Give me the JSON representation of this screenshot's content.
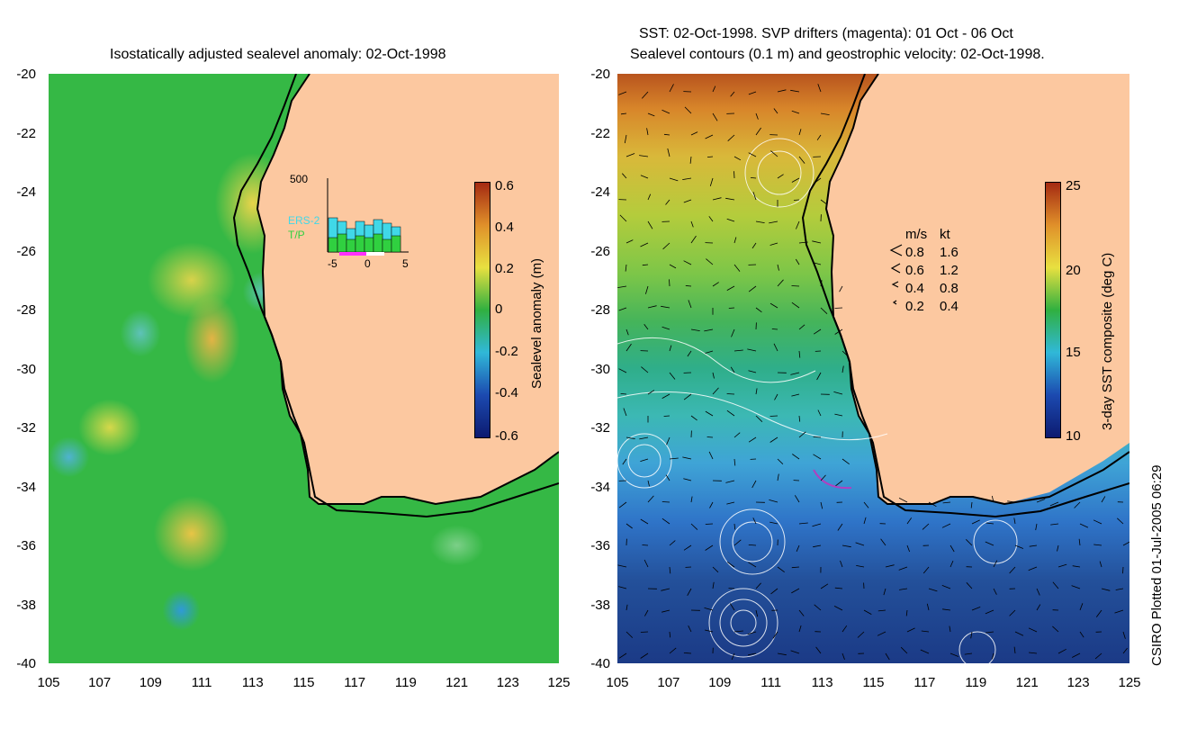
{
  "left_panel": {
    "title": "Isostatically adjusted sealevel anomaly: 02-Oct-1998",
    "y_ticks": [
      "-20",
      "-22",
      "-24",
      "-26",
      "-28",
      "-30",
      "-32",
      "-34",
      "-36",
      "-38",
      "-40"
    ],
    "x_ticks": [
      "105",
      "107",
      "109",
      "111",
      "113",
      "115",
      "117",
      "119",
      "121",
      "123",
      "125"
    ],
    "colorbar": {
      "title": "Sealevel anomaly (m)",
      "ticks": [
        "0.6",
        "0.4",
        "0.2",
        "0",
        "-0.2",
        "-0.4",
        "-0.6"
      ],
      "colors": [
        "#a42a12",
        "#e0902a",
        "#e8e040",
        "#30b040",
        "#30b8d8",
        "#1c4ab0",
        "#0c1a70"
      ]
    },
    "inset": {
      "y_max_label": "500",
      "x_ticks": [
        "-5",
        "0",
        "5"
      ],
      "legend": [
        {
          "label": "ERS-2",
          "color": "#40d8e8"
        },
        {
          "label": "T/P",
          "color": "#30d040"
        }
      ]
    }
  },
  "right_panel": {
    "title_line1": "SST: 02-Oct-1998. SVP drifters (magenta): 01 Oct - 06 Oct",
    "title_line2": "Sealevel contours (0.1 m) and geostrophic velocity: 02-Oct-1998.",
    "y_ticks": [
      "-20",
      "-22",
      "-24",
      "-26",
      "-28",
      "-30",
      "-32",
      "-34",
      "-36",
      "-38",
      "-40"
    ],
    "x_ticks": [
      "105",
      "107",
      "109",
      "111",
      "113",
      "115",
      "117",
      "119",
      "121",
      "123",
      "125"
    ],
    "colorbar": {
      "title": "3-day SST composite (deg C)",
      "ticks": [
        "25",
        "20",
        "15",
        "10"
      ],
      "colors": [
        "#a42a12",
        "#e0902a",
        "#e8e040",
        "#30b040",
        "#30b8d8",
        "#1c4ab0",
        "#0c1a70"
      ]
    },
    "velocity_legend": {
      "header_ms": "m/s",
      "header_kt": "kt",
      "rows": [
        {
          "ms": "0.8",
          "kt": "1.6"
        },
        {
          "ms": "0.6",
          "kt": "1.2"
        },
        {
          "ms": "0.4",
          "kt": "0.8"
        },
        {
          "ms": "0.2",
          "kt": "0.4"
        }
      ]
    }
  },
  "footer": "CSIRO Plotted 01-Jul-2005 06:29",
  "colors": {
    "land": "#fcc8a0",
    "coast": "#000000"
  }
}
